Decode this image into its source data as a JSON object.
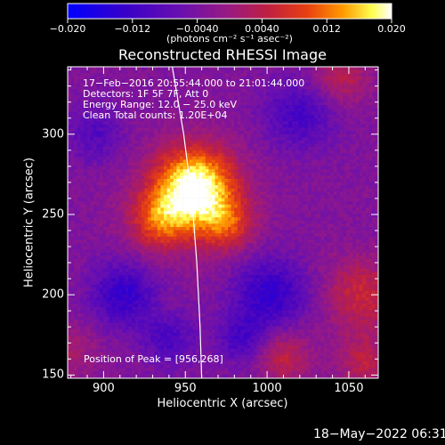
{
  "chart_data": {
    "type": "heatmap",
    "title": "Reconstructed RHESSI Image",
    "xlabel": "Heliocentric X (arcsec)",
    "ylabel": "Heliocentric Y (arcsec)",
    "xlim": [
      878,
      1068
    ],
    "ylim": [
      148,
      342
    ],
    "x_ticks": [
      900,
      950,
      1000,
      1050
    ],
    "y_ticks": [
      150,
      200,
      250,
      300
    ],
    "colorbar": {
      "range": [
        -0.02,
        0.02
      ],
      "tick_values": [
        -0.02,
        -0.012,
        -0.004,
        0.004,
        0.012,
        0.02
      ],
      "tick_labels": [
        "−0.020",
        "−0.012",
        "−0.0040",
        "0.0040",
        "0.012",
        "0.020"
      ],
      "unit_label": "(photons cm⁻² s⁻¹ asec⁻²)",
      "colors": [
        "#0000ff",
        "#4000b0",
        "#7a1fa0",
        "#b02060",
        "#e03010",
        "#ff8800",
        "#ffff40",
        "#ffffff"
      ]
    },
    "annotations": [
      "17−Feb−2016 20:55:44.000 to 21:01:44.000",
      "Detectors: 1F 5F 7F, Att 0",
      "Energy Range: 12.0 − 25.0 keV",
      "Clean      Total counts: 1.20E+04"
    ],
    "peak_label": "Position of Peak = [956,268]",
    "peak": [
      956,
      268
    ],
    "limb": [
      [
        942,
        342
      ],
      [
        949,
        300
      ],
      [
        954,
        260
      ],
      [
        957,
        220
      ],
      [
        959,
        180
      ],
      [
        960,
        148
      ]
    ]
  },
  "footer": {
    "timestamp": "18−May−2022 06:31"
  }
}
